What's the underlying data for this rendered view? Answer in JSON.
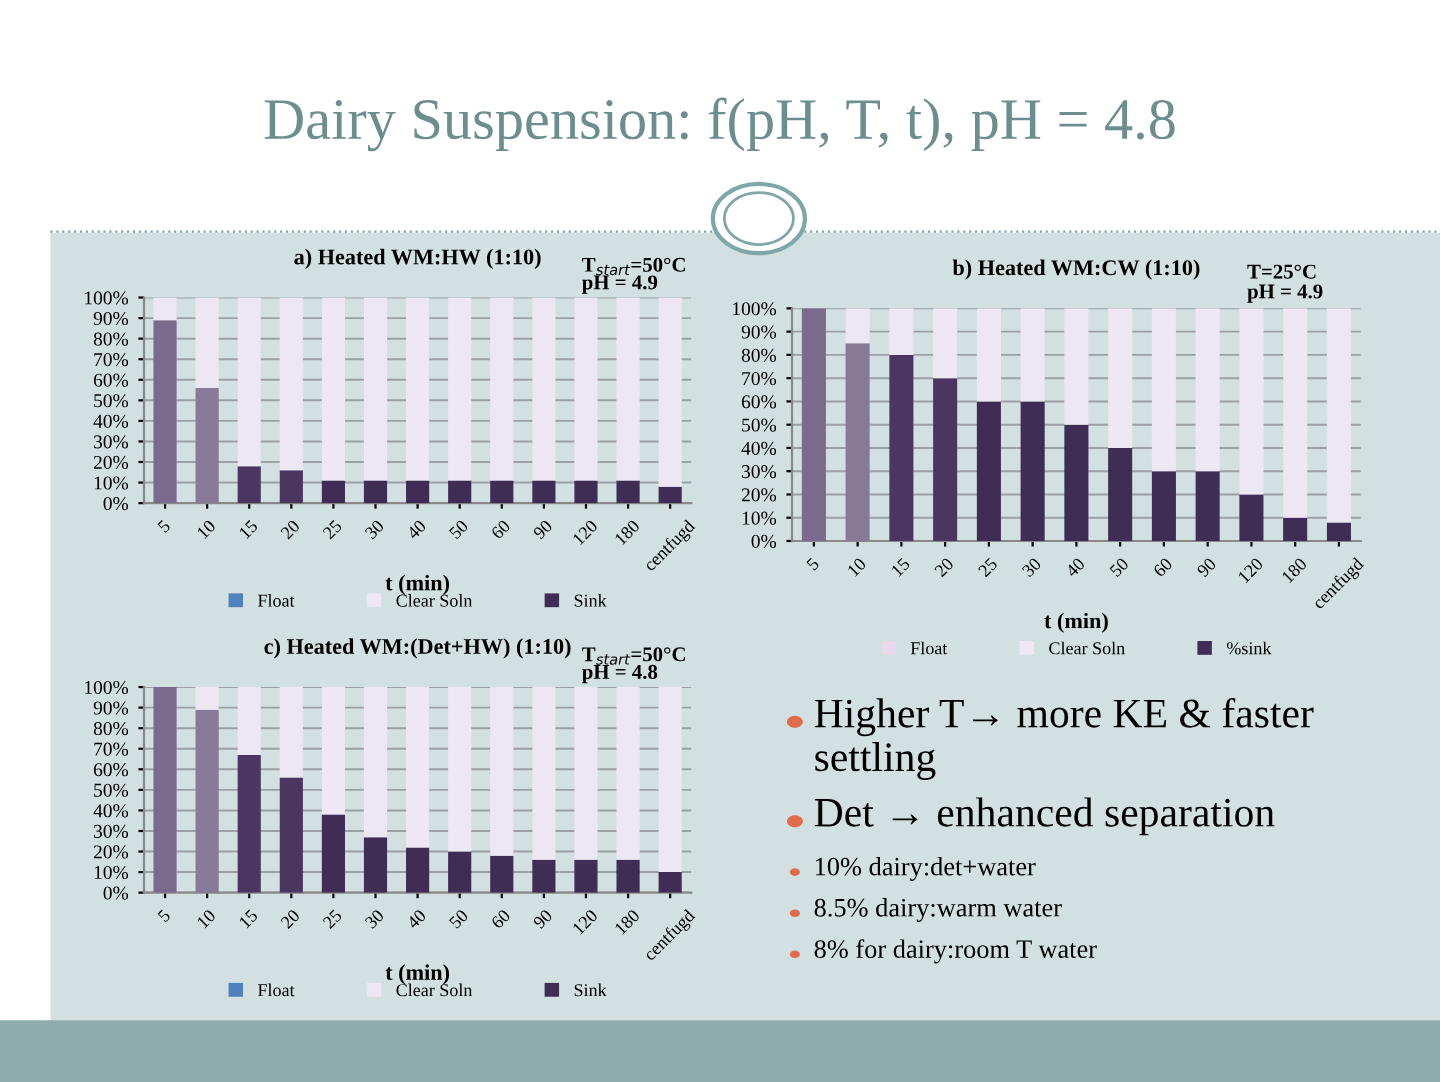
{
  "chart_data": [
    {
      "type": "bar",
      "title": "a) Heated WM:HW (1:10)",
      "xlabel": "t (min)",
      "stacked": true,
      "legend": "bottom",
      "grid": "y",
      "annotations": [
        "T$_{start}$=50°C",
        "pH = 4.9"
      ],
      "categories": [
        "5",
        "10",
        "15",
        "20",
        "25",
        "30",
        "40",
        "50",
        "60",
        "90",
        "120",
        "180",
        "centfugd"
      ],
      "ylim": [
        0,
        100
      ],
      "yticks": [
        {
          "value": 0,
          "label": "0%"
        },
        {
          "value": 10,
          "label": "10%"
        },
        {
          "value": 20,
          "label": "20%"
        },
        {
          "value": 30,
          "label": "30%"
        },
        {
          "value": 40,
          "label": "40%"
        },
        {
          "value": 50,
          "label": "50%"
        },
        {
          "value": 60,
          "label": "60%"
        },
        {
          "value": 70,
          "label": "70%"
        },
        {
          "value": 80,
          "label": "80%"
        },
        {
          "value": 90,
          "label": "90%"
        },
        {
          "value": 100,
          "label": "100%"
        }
      ],
      "series": [
        {
          "name": "Sink",
          "color": "#3f2d55",
          "colors": [
            "#7a6a8c",
            "#867a96",
            "#4a3660",
            "#4a3660",
            "#3f2d55",
            "#3f2d55",
            "#3f2d55",
            "#3f2d55",
            "#3f2d55",
            "#3f2d55",
            "#3f2d55",
            "#3f2d55",
            "#3f2d55"
          ],
          "values": [
            89,
            56,
            18,
            16,
            11,
            11,
            11,
            11,
            11,
            11,
            11,
            11,
            8
          ]
        },
        {
          "name": "Float",
          "color": "#4f81bd",
          "values": [
            0,
            0,
            0,
            0,
            0,
            0,
            0,
            0,
            0,
            0,
            0,
            0,
            0
          ]
        },
        {
          "name": "Clear Soln",
          "color": "#ede6f3",
          "values": [
            11,
            44,
            82,
            84,
            89,
            89,
            89,
            89,
            89,
            89,
            89,
            89,
            92
          ]
        }
      ]
    },
    {
      "type": "bar",
      "title": "b) Heated WM:CW (1:10)",
      "xlabel": "t (min)",
      "stacked": true,
      "legend": "bottom",
      "grid": "y",
      "annotations": [
        "T=25°C",
        "pH = 4.9"
      ],
      "categories": [
        "5",
        "10",
        "15",
        "20",
        "25",
        "30",
        "40",
        "50",
        "60",
        "90",
        "120",
        "180",
        "centfugd"
      ],
      "ylim": [
        0,
        100
      ],
      "yticks": [
        {
          "value": 0,
          "label": "0%"
        },
        {
          "value": 10,
          "label": "10%"
        },
        {
          "value": 20,
          "label": "20%"
        },
        {
          "value": 30,
          "label": "30%"
        },
        {
          "value": 40,
          "label": "40%"
        },
        {
          "value": 50,
          "label": "50%"
        },
        {
          "value": 60,
          "label": "60%"
        },
        {
          "value": 70,
          "label": "70%"
        },
        {
          "value": 80,
          "label": "80%"
        },
        {
          "value": 90,
          "label": "90%"
        },
        {
          "value": 100,
          "label": "100%"
        }
      ],
      "series": [
        {
          "name": "%sink",
          "color": "#3f2d55",
          "colors": [
            "#7a6a8c",
            "#867a96",
            "#4a3660",
            "#4a3660",
            "#3f2d55",
            "#3f2d55",
            "#3f2d55",
            "#3f2d55",
            "#3f2d55",
            "#3f2d55",
            "#3f2d55",
            "#3f2d55",
            "#3f2d55"
          ],
          "values": [
            100,
            85,
            80,
            70,
            60,
            60,
            50,
            40,
            30,
            30,
            20,
            10,
            8
          ]
        },
        {
          "name": "Float",
          "color": "#e8d8ec",
          "values": [
            0,
            0,
            0,
            0,
            0,
            0,
            0,
            0,
            0,
            0,
            0,
            0,
            0
          ]
        },
        {
          "name": "Clear Soln",
          "color": "#ede6f3",
          "values": [
            0,
            15,
            20,
            30,
            40,
            40,
            50,
            60,
            70,
            70,
            80,
            90,
            92
          ]
        }
      ]
    },
    {
      "type": "bar",
      "title": "c) Heated WM:(Det+HW) (1:10)",
      "xlabel": "t (min)",
      "stacked": true,
      "legend": "bottom",
      "grid": "y",
      "annotations": [
        "T$_{start}$=50°C",
        "pH = 4.8"
      ],
      "categories": [
        "5",
        "10",
        "15",
        "20",
        "25",
        "30",
        "40",
        "50",
        "60",
        "90",
        "120",
        "180",
        "centfugd"
      ],
      "ylim": [
        0,
        100
      ],
      "yticks": [
        {
          "value": 0,
          "label": "0%"
        },
        {
          "value": 10,
          "label": "10%"
        },
        {
          "value": 20,
          "label": "20%"
        },
        {
          "value": 30,
          "label": "30%"
        },
        {
          "value": 40,
          "label": "40%"
        },
        {
          "value": 50,
          "label": "50%"
        },
        {
          "value": 60,
          "label": "60%"
        },
        {
          "value": 70,
          "label": "70%"
        },
        {
          "value": 80,
          "label": "80%"
        },
        {
          "value": 90,
          "label": "90%"
        },
        {
          "value": 100,
          "label": "100%"
        }
      ],
      "series": [
        {
          "name": "Sink",
          "color": "#3f2d55",
          "colors": [
            "#7a6a8c",
            "#867a96",
            "#4a3660",
            "#4a3660",
            "#3f2d55",
            "#3f2d55",
            "#3f2d55",
            "#3f2d55",
            "#3f2d55",
            "#3f2d55",
            "#3f2d55",
            "#3f2d55",
            "#3f2d55"
          ],
          "values": [
            100,
            89,
            67,
            56,
            38,
            27,
            22,
            20,
            18,
            16,
            16,
            16,
            10
          ]
        },
        {
          "name": "Float",
          "color": "#4f81bd",
          "values": [
            0,
            0,
            0,
            0,
            0,
            0,
            0,
            0,
            0,
            0,
            0,
            0,
            0
          ]
        },
        {
          "name": "Clear Soln",
          "color": "#ede6f3",
          "values": [
            0,
            11,
            33,
            44,
            62,
            73,
            78,
            80,
            82,
            84,
            84,
            84,
            90
          ]
        }
      ]
    },
    {
      "type": "other",
      "title": "Dairy Suspension: f(pH, T, t), pH = 4.8",
      "annotations": [
        "Higher T→ more KE & faster settling",
        "Det → enhanced separation",
        "10% dairy:det+water",
        "8.5% dairy:warm water",
        "8% for dairy:room T water"
      ]
    }
  ]
}
